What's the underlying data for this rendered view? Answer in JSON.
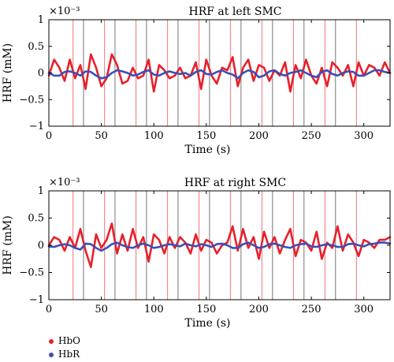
{
  "chart_data": [
    {
      "type": "line",
      "title": "HRF at left SMC",
      "xlabel": "Time (s)",
      "ylabel": "HRF (mM)",
      "y_multiplier": "×10⁻³",
      "xlim": [
        0,
        325
      ],
      "ylim": [
        -1,
        1
      ],
      "x_ticks": [
        0,
        50,
        100,
        150,
        200,
        250,
        300
      ],
      "y_ticks": [
        -1,
        -0.5,
        0,
        0.5,
        1
      ],
      "x_tick_labels": [
        "0",
        "50",
        "100",
        "150",
        "200",
        "250",
        "300"
      ],
      "y_tick_labels": [
        "−1",
        "−0.5",
        "0",
        "0.5",
        "1"
      ],
      "red_markers": [
        23,
        53,
        83,
        113,
        143,
        173,
        203,
        233,
        263,
        293
      ],
      "gray_markers": [
        33,
        63,
        93,
        123,
        153,
        183,
        213,
        243,
        273
      ],
      "series": [
        {
          "name": "HbO",
          "color": "#e8202a",
          "x": [
            0,
            5,
            10,
            15,
            20,
            25,
            30,
            35,
            40,
            45,
            50,
            55,
            60,
            65,
            70,
            75,
            80,
            85,
            90,
            95,
            100,
            105,
            110,
            115,
            120,
            125,
            130,
            135,
            140,
            145,
            150,
            155,
            160,
            165,
            170,
            175,
            180,
            185,
            190,
            195,
            200,
            205,
            210,
            215,
            220,
            225,
            230,
            235,
            240,
            245,
            250,
            255,
            260,
            265,
            270,
            275,
            280,
            285,
            290,
            295,
            300,
            305,
            310,
            315,
            320,
            325
          ],
          "y": [
            -0.05,
            0.25,
            0.1,
            -0.15,
            0.25,
            -0.1,
            0.15,
            -0.3,
            0.35,
            0.1,
            -0.25,
            -0.1,
            0.35,
            0.15,
            -0.2,
            -0.15,
            0.1,
            -0.1,
            -0.05,
            0.25,
            -0.35,
            0.15,
            0.05,
            -0.1,
            -0.05,
            0.1,
            -0.1,
            -0.05,
            0.2,
            -0.3,
            0.25,
            -0.05,
            -0.2,
            0.1,
            0.05,
            0.3,
            -0.25,
            0.1,
            0.25,
            -0.15,
            0.15,
            0.1,
            -0.15,
            0.05,
            -0.05,
            0.2,
            -0.35,
            0.15,
            -0.1,
            0.25,
            -0.05,
            -0.2,
            0.1,
            -0.25,
            0.2,
            0.1,
            -0.05,
            0.15,
            -0.25,
            0.2,
            -0.05,
            0.15,
            0.1,
            -0.05,
            0.2,
            0.0
          ]
        },
        {
          "name": "HbR",
          "color": "#3a4fb4",
          "x": [
            0,
            5,
            10,
            15,
            20,
            25,
            30,
            35,
            40,
            45,
            50,
            55,
            60,
            65,
            70,
            75,
            80,
            85,
            90,
            95,
            100,
            105,
            110,
            115,
            120,
            125,
            130,
            135,
            140,
            145,
            150,
            155,
            160,
            165,
            170,
            175,
            180,
            185,
            190,
            195,
            200,
            205,
            210,
            215,
            220,
            225,
            230,
            235,
            240,
            245,
            250,
            255,
            260,
            265,
            270,
            275,
            280,
            285,
            290,
            295,
            300,
            305,
            310,
            315,
            320,
            325
          ],
          "y": [
            0.0,
            -0.05,
            -0.05,
            0.02,
            0.03,
            0.0,
            -0.05,
            0.03,
            0.02,
            -0.05,
            -0.1,
            -0.08,
            0.0,
            0.05,
            0.03,
            0.0,
            -0.05,
            -0.03,
            0.02,
            0.05,
            -0.03,
            -0.05,
            0.0,
            0.03,
            0.0,
            -0.02,
            0.0,
            -0.05,
            0.02,
            0.05,
            -0.02,
            -0.03,
            0.02,
            0.05,
            0.0,
            -0.03,
            -0.1,
            0.0,
            0.05,
            0.02,
            -0.08,
            -0.05,
            0.03,
            0.05,
            -0.02,
            -0.05,
            0.0,
            0.02,
            0.05,
            0.0,
            -0.05,
            -0.08,
            0.02,
            0.05,
            -0.02,
            -0.05,
            0.0,
            0.03,
            0.02,
            -0.05,
            -0.05,
            0.0,
            0.05,
            0.05,
            0.02,
            0.0
          ]
        }
      ]
    },
    {
      "type": "line",
      "title": "HRF at right SMC",
      "xlabel": "Time (s)",
      "ylabel": "HRF (mM)",
      "y_multiplier": "×10⁻³",
      "xlim": [
        0,
        325
      ],
      "ylim": [
        -1,
        1
      ],
      "x_ticks": [
        0,
        50,
        100,
        150,
        200,
        250,
        300
      ],
      "y_ticks": [
        -1,
        -0.5,
        0,
        0.5,
        1
      ],
      "x_tick_labels": [
        "0",
        "50",
        "100",
        "150",
        "200",
        "250",
        "300"
      ],
      "y_tick_labels": [
        "−1",
        "−0.5",
        "0",
        "0.5",
        "1"
      ],
      "red_markers": [
        23,
        53,
        83,
        113,
        143,
        173,
        203,
        233,
        263,
        293
      ],
      "gray_markers": [
        33,
        63,
        93,
        123,
        153,
        183,
        213,
        243,
        273
      ],
      "series": [
        {
          "name": "HbO",
          "color": "#e8202a",
          "x": [
            0,
            5,
            10,
            15,
            20,
            25,
            30,
            35,
            40,
            45,
            50,
            55,
            60,
            65,
            70,
            75,
            80,
            85,
            90,
            95,
            100,
            105,
            110,
            115,
            120,
            125,
            130,
            135,
            140,
            145,
            150,
            155,
            160,
            165,
            170,
            175,
            180,
            185,
            190,
            195,
            200,
            205,
            210,
            215,
            220,
            225,
            230,
            235,
            240,
            245,
            250,
            255,
            260,
            265,
            270,
            275,
            280,
            285,
            290,
            295,
            300,
            305,
            310,
            315,
            320,
            325
          ],
          "y": [
            0.0,
            0.15,
            0.1,
            -0.1,
            0.15,
            -0.05,
            0.3,
            -0.1,
            -0.4,
            0.2,
            -0.05,
            0.1,
            0.4,
            -0.15,
            0.2,
            -0.1,
            0.3,
            -0.05,
            0.15,
            -0.3,
            0.2,
            0.1,
            -0.15,
            0.15,
            -0.05,
            0.15,
            0.05,
            -0.15,
            0.2,
            -0.1,
            0.1,
            0.05,
            -0.15,
            0.0,
            0.05,
            0.35,
            -0.1,
            0.3,
            -0.05,
            0.15,
            -0.25,
            0.25,
            -0.05,
            0.15,
            -0.15,
            0.1,
            0.3,
            -0.2,
            0.1,
            0.05,
            -0.1,
            0.25,
            -0.25,
            0.05,
            -0.05,
            0.35,
            -0.1,
            0.2,
            0.05,
            -0.2,
            0.1,
            0.05,
            -0.05,
            0.1,
            0.1,
            0.15
          ]
        },
        {
          "name": "HbR",
          "color": "#3a4fb4",
          "x": [
            0,
            5,
            10,
            15,
            20,
            25,
            30,
            35,
            40,
            45,
            50,
            55,
            60,
            65,
            70,
            75,
            80,
            85,
            90,
            95,
            100,
            105,
            110,
            115,
            120,
            125,
            130,
            135,
            140,
            145,
            150,
            155,
            160,
            165,
            170,
            175,
            180,
            185,
            190,
            195,
            200,
            205,
            210,
            215,
            220,
            225,
            230,
            235,
            240,
            245,
            250,
            255,
            260,
            265,
            270,
            275,
            280,
            285,
            290,
            295,
            300,
            305,
            310,
            315,
            320,
            325
          ],
          "y": [
            -0.02,
            -0.03,
            0.0,
            0.02,
            0.0,
            -0.05,
            -0.08,
            0.03,
            0.02,
            -0.05,
            -0.1,
            -0.05,
            0.02,
            0.05,
            0.0,
            -0.03,
            -0.05,
            0.0,
            0.03,
            0.0,
            -0.05,
            -0.03,
            0.0,
            0.02,
            0.0,
            -0.02,
            0.03,
            0.0,
            -0.02,
            0.02,
            0.0,
            -0.03,
            0.02,
            0.03,
            0.0,
            -0.05,
            -0.05,
            0.02,
            0.05,
            0.0,
            -0.05,
            -0.03,
            0.02,
            0.03,
            0.0,
            -0.03,
            -0.05,
            0.0,
            0.02,
            0.03,
            -0.02,
            -0.03,
            0.0,
            0.02,
            0.0,
            -0.03,
            -0.03,
            0.02,
            0.03,
            0.0,
            -0.02,
            0.02,
            0.03,
            0.05,
            0.05,
            0.03
          ]
        }
      ]
    }
  ],
  "legend": {
    "items": [
      {
        "label": "HbO",
        "color": "#e8202a"
      },
      {
        "label": "HbR",
        "color": "#3a4fb4"
      }
    ]
  }
}
